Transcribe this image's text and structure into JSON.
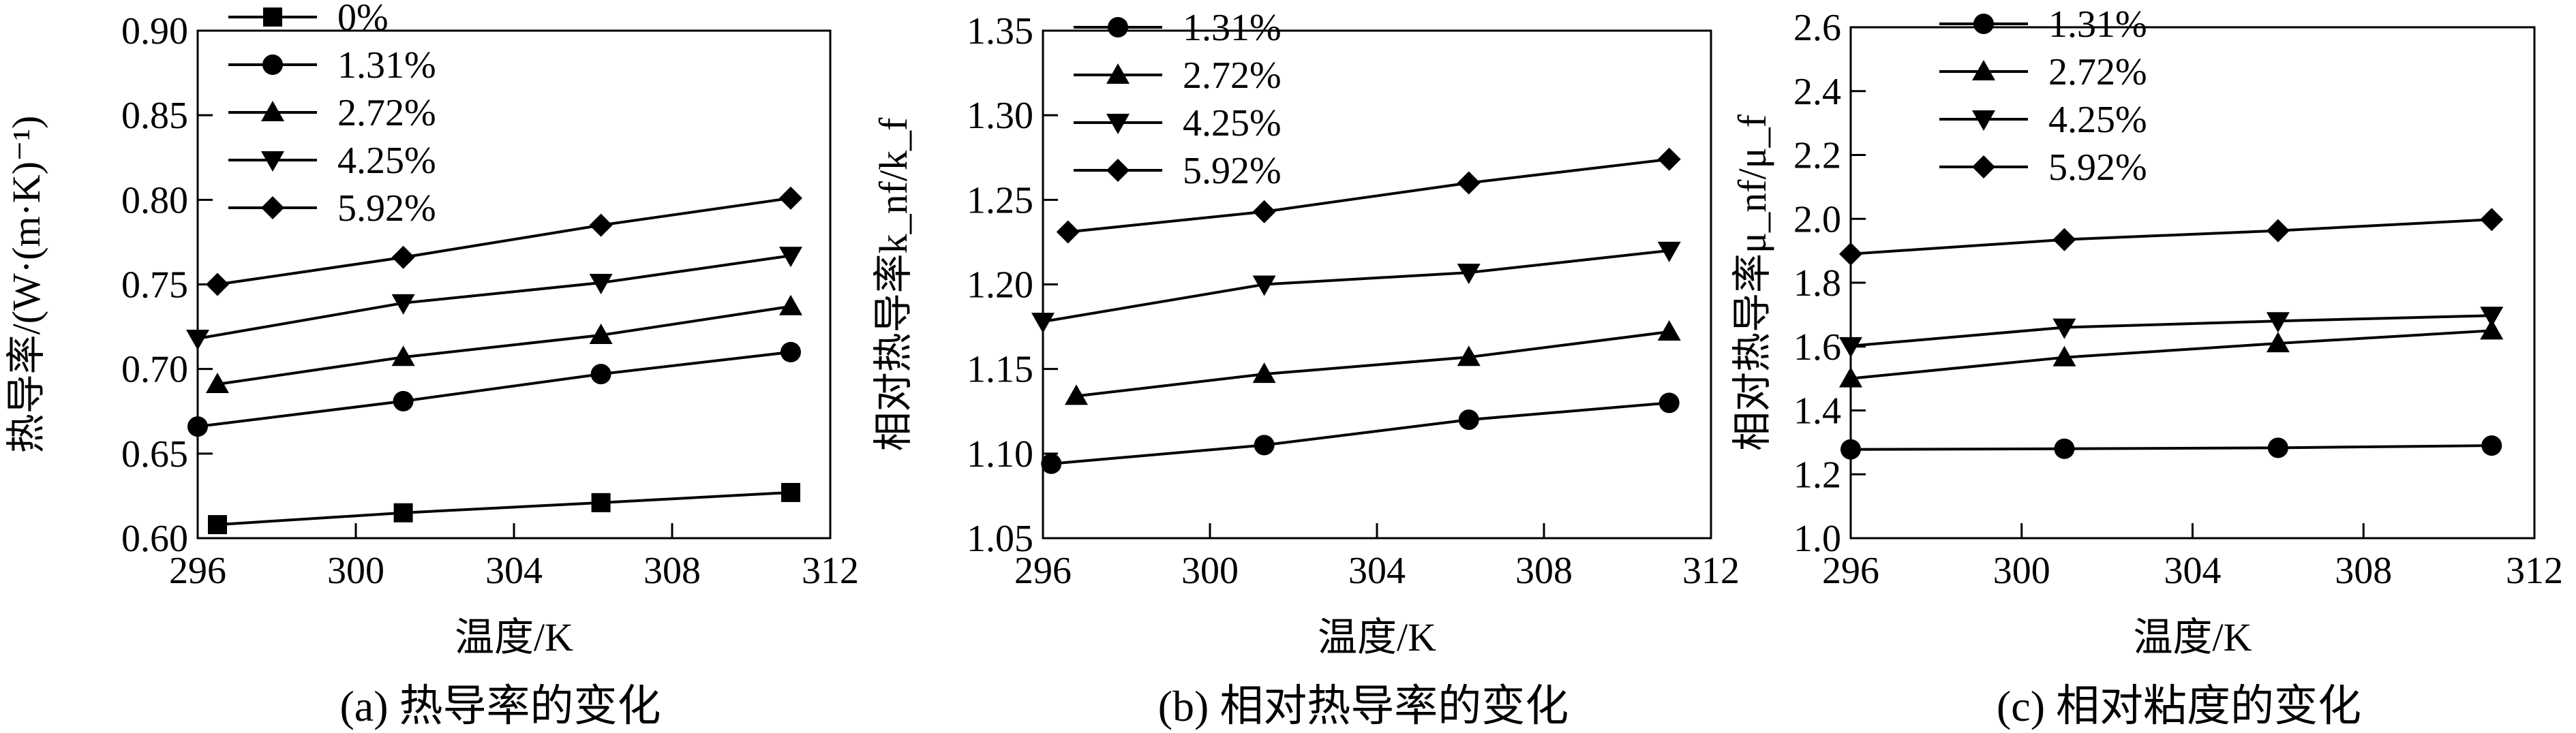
{
  "panels": [
    {
      "caption": "(a) 热导率的变化",
      "ylabel": "热导率/(W·(m·K)⁻¹)",
      "xlabel": "温度/K"
    },
    {
      "caption": "(b) 相对热导率的变化",
      "ylabel": "相对热导率k_nf/k_f",
      "xlabel": "温度/K"
    },
    {
      "caption": "(c) 相对粘度的变化",
      "ylabel": "相对热导率μ_nf/μ_f",
      "xlabel": "温度/K"
    }
  ],
  "chart_data": [
    {
      "type": "line",
      "title": "(a) 热导率的变化",
      "xlabel": "温度/K",
      "ylabel": "热导率/(W·(m·K)⁻¹)",
      "xlim": [
        296,
        312
      ],
      "ylim": [
        0.6,
        0.9
      ],
      "xticks": [
        "296",
        "300",
        "304",
        "308",
        "312"
      ],
      "yticks": [
        "0.60",
        "0.65",
        "0.70",
        "0.75",
        "0.80",
        "0.85",
        "0.90"
      ],
      "grid": false,
      "legend_position": "top-left",
      "series": [
        {
          "name": "0%",
          "marker": "square",
          "x": [
            296.5,
            301.2,
            306.2,
            311
          ],
          "y": [
            0.608,
            0.615,
            0.621,
            0.627
          ]
        },
        {
          "name": "1.31%",
          "marker": "circle",
          "x": [
            296,
            301.2,
            306.2,
            311
          ],
          "y": [
            0.666,
            0.681,
            0.697,
            0.71
          ]
        },
        {
          "name": "2.72%",
          "marker": "triangle-up",
          "x": [
            296.5,
            301.2,
            306.2,
            311
          ],
          "y": [
            0.691,
            0.707,
            0.72,
            0.737
          ]
        },
        {
          "name": "4.25%",
          "marker": "triangle-down",
          "x": [
            296,
            301.2,
            306.2,
            311
          ],
          "y": [
            0.718,
            0.739,
            0.751,
            0.767
          ]
        },
        {
          "name": "5.92%",
          "marker": "diamond",
          "x": [
            296.5,
            301.2,
            306.2,
            311
          ],
          "y": [
            0.75,
            0.766,
            0.785,
            0.801
          ]
        }
      ]
    },
    {
      "type": "line",
      "title": "(b) 相对热导率的变化",
      "xlabel": "温度/K",
      "ylabel": "相对热导率k_nf/k_f",
      "xlim": [
        296,
        312
      ],
      "ylim": [
        1.05,
        1.35
      ],
      "xticks": [
        "296",
        "300",
        "304",
        "308",
        "312"
      ],
      "yticks": [
        "1.05",
        "1.10",
        "1.15",
        "1.20",
        "1.25",
        "1.30",
        "1.35"
      ],
      "grid": false,
      "legend_position": "top-left",
      "series": [
        {
          "name": "1.31%",
          "marker": "circle",
          "x": [
            296.2,
            301.3,
            306.2,
            311
          ],
          "y": [
            1.094,
            1.105,
            1.12,
            1.13
          ]
        },
        {
          "name": "2.72%",
          "marker": "triangle-up",
          "x": [
            296.8,
            301.3,
            306.2,
            311
          ],
          "y": [
            1.134,
            1.147,
            1.157,
            1.172
          ]
        },
        {
          "name": "4.25%",
          "marker": "triangle-down",
          "x": [
            296,
            301.3,
            306.2,
            311
          ],
          "y": [
            1.178,
            1.2,
            1.207,
            1.22
          ]
        },
        {
          "name": "5.92%",
          "marker": "diamond",
          "x": [
            296.6,
            301.3,
            306.2,
            311
          ],
          "y": [
            1.231,
            1.243,
            1.26,
            1.274
          ]
        }
      ]
    },
    {
      "type": "line",
      "title": "(c) 相对粘度的变化",
      "xlabel": "温度/K",
      "ylabel": "相对热导率μ_nf/μ_f",
      "xlim": [
        296,
        312
      ],
      "ylim": [
        1.0,
        2.6
      ],
      "xticks": [
        "296",
        "300",
        "304",
        "308",
        "312"
      ],
      "yticks": [
        "1.0",
        "1.2",
        "1.4",
        "1.6",
        "1.8",
        "2.0",
        "2.2",
        "2.4",
        "2.6"
      ],
      "grid": false,
      "legend_position": "top-left",
      "series": [
        {
          "name": "1.31%",
          "marker": "circle",
          "x": [
            296,
            301,
            306,
            311
          ],
          "y": [
            1.278,
            1.28,
            1.283,
            1.29
          ]
        },
        {
          "name": "2.72%",
          "marker": "triangle-up",
          "x": [
            296,
            301,
            306,
            311
          ],
          "y": [
            1.5,
            1.566,
            1.61,
            1.65
          ]
        },
        {
          "name": "4.25%",
          "marker": "triangle-down",
          "x": [
            296,
            301,
            306,
            311
          ],
          "y": [
            1.602,
            1.66,
            1.68,
            1.697
          ]
        },
        {
          "name": "5.92%",
          "marker": "diamond",
          "x": [
            296,
            301,
            306,
            311
          ],
          "y": [
            1.89,
            1.935,
            1.963,
            1.998
          ]
        }
      ]
    }
  ]
}
